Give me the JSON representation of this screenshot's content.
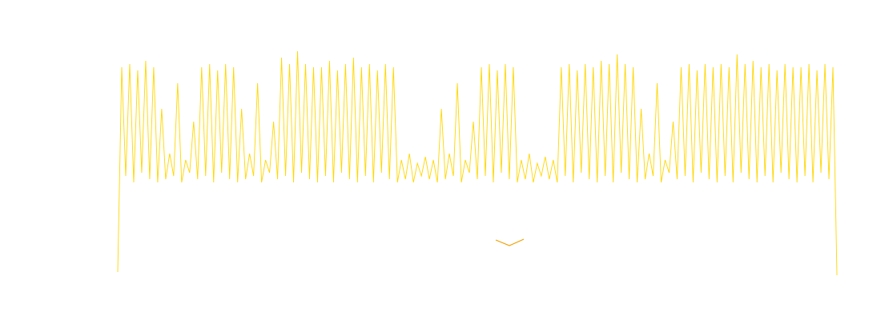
{
  "chart_data": {
    "type": "line",
    "color": "#ffd700",
    "ylim": [
      0,
      100
    ],
    "values": [
      15,
      79,
      45,
      80,
      43,
      78,
      46,
      81,
      44,
      79,
      43,
      66,
      44,
      52,
      45,
      74,
      43,
      50,
      46,
      62,
      44,
      79,
      45,
      80,
      43,
      78,
      46,
      80,
      44,
      79,
      43,
      66,
      44,
      52,
      45,
      74,
      43,
      50,
      46,
      62,
      44,
      82,
      45,
      80,
      43,
      84,
      46,
      80,
      44,
      79,
      43,
      79,
      45,
      81,
      43,
      78,
      46,
      80,
      44,
      82,
      43,
      79,
      45,
      80,
      43,
      78,
      46,
      80,
      44,
      79,
      43,
      50,
      44,
      52,
      43,
      49,
      45,
      51,
      44,
      50,
      43,
      66,
      44,
      52,
      45,
      74,
      43,
      50,
      46,
      62,
      44,
      79,
      45,
      80,
      43,
      78,
      46,
      80,
      44,
      79,
      43,
      50,
      44,
      52,
      43,
      49,
      45,
      51,
      44,
      50,
      43,
      79,
      45,
      80,
      43,
      78,
      46,
      80,
      44,
      79,
      43,
      81,
      45,
      80,
      43,
      83,
      46,
      80,
      44,
      79,
      43,
      66,
      44,
      52,
      45,
      74,
      43,
      50,
      46,
      62,
      44,
      79,
      45,
      80,
      43,
      78,
      46,
      80,
      44,
      79,
      43,
      80,
      45,
      79,
      43,
      83,
      46,
      80,
      44,
      81,
      43,
      79,
      45,
      80,
      43,
      78,
      46,
      80,
      44,
      79,
      43,
      79,
      45,
      80,
      43,
      78,
      46,
      80,
      44,
      79,
      14
    ]
  }
}
